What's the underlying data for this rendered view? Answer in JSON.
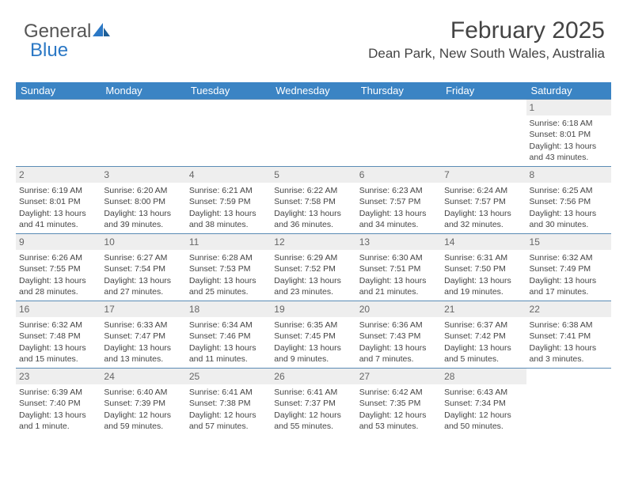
{
  "logo": {
    "text1": "General",
    "text2": "Blue"
  },
  "header": {
    "month_title": "February 2025",
    "location": "Dean Park, New South Wales, Australia"
  },
  "colors": {
    "header_bar": "#3b84c4",
    "header_text": "#ffffff",
    "daynum_bg": "#eeeeee",
    "daynum_text": "#666666",
    "divider": "#5a8bb5",
    "body_text": "#444444",
    "logo_gray": "#555555",
    "logo_blue": "#2b78c5"
  },
  "day_headers": [
    "Sunday",
    "Monday",
    "Tuesday",
    "Wednesday",
    "Thursday",
    "Friday",
    "Saturday"
  ],
  "weeks": [
    [
      null,
      null,
      null,
      null,
      null,
      null,
      {
        "n": "1",
        "sunrise": "Sunrise: 6:18 AM",
        "sunset": "Sunset: 8:01 PM",
        "daylight": "Daylight: 13 hours and 43 minutes."
      }
    ],
    [
      {
        "n": "2",
        "sunrise": "Sunrise: 6:19 AM",
        "sunset": "Sunset: 8:01 PM",
        "daylight": "Daylight: 13 hours and 41 minutes."
      },
      {
        "n": "3",
        "sunrise": "Sunrise: 6:20 AM",
        "sunset": "Sunset: 8:00 PM",
        "daylight": "Daylight: 13 hours and 39 minutes."
      },
      {
        "n": "4",
        "sunrise": "Sunrise: 6:21 AM",
        "sunset": "Sunset: 7:59 PM",
        "daylight": "Daylight: 13 hours and 38 minutes."
      },
      {
        "n": "5",
        "sunrise": "Sunrise: 6:22 AM",
        "sunset": "Sunset: 7:58 PM",
        "daylight": "Daylight: 13 hours and 36 minutes."
      },
      {
        "n": "6",
        "sunrise": "Sunrise: 6:23 AM",
        "sunset": "Sunset: 7:57 PM",
        "daylight": "Daylight: 13 hours and 34 minutes."
      },
      {
        "n": "7",
        "sunrise": "Sunrise: 6:24 AM",
        "sunset": "Sunset: 7:57 PM",
        "daylight": "Daylight: 13 hours and 32 minutes."
      },
      {
        "n": "8",
        "sunrise": "Sunrise: 6:25 AM",
        "sunset": "Sunset: 7:56 PM",
        "daylight": "Daylight: 13 hours and 30 minutes."
      }
    ],
    [
      {
        "n": "9",
        "sunrise": "Sunrise: 6:26 AM",
        "sunset": "Sunset: 7:55 PM",
        "daylight": "Daylight: 13 hours and 28 minutes."
      },
      {
        "n": "10",
        "sunrise": "Sunrise: 6:27 AM",
        "sunset": "Sunset: 7:54 PM",
        "daylight": "Daylight: 13 hours and 27 minutes."
      },
      {
        "n": "11",
        "sunrise": "Sunrise: 6:28 AM",
        "sunset": "Sunset: 7:53 PM",
        "daylight": "Daylight: 13 hours and 25 minutes."
      },
      {
        "n": "12",
        "sunrise": "Sunrise: 6:29 AM",
        "sunset": "Sunset: 7:52 PM",
        "daylight": "Daylight: 13 hours and 23 minutes."
      },
      {
        "n": "13",
        "sunrise": "Sunrise: 6:30 AM",
        "sunset": "Sunset: 7:51 PM",
        "daylight": "Daylight: 13 hours and 21 minutes."
      },
      {
        "n": "14",
        "sunrise": "Sunrise: 6:31 AM",
        "sunset": "Sunset: 7:50 PM",
        "daylight": "Daylight: 13 hours and 19 minutes."
      },
      {
        "n": "15",
        "sunrise": "Sunrise: 6:32 AM",
        "sunset": "Sunset: 7:49 PM",
        "daylight": "Daylight: 13 hours and 17 minutes."
      }
    ],
    [
      {
        "n": "16",
        "sunrise": "Sunrise: 6:32 AM",
        "sunset": "Sunset: 7:48 PM",
        "daylight": "Daylight: 13 hours and 15 minutes."
      },
      {
        "n": "17",
        "sunrise": "Sunrise: 6:33 AM",
        "sunset": "Sunset: 7:47 PM",
        "daylight": "Daylight: 13 hours and 13 minutes."
      },
      {
        "n": "18",
        "sunrise": "Sunrise: 6:34 AM",
        "sunset": "Sunset: 7:46 PM",
        "daylight": "Daylight: 13 hours and 11 minutes."
      },
      {
        "n": "19",
        "sunrise": "Sunrise: 6:35 AM",
        "sunset": "Sunset: 7:45 PM",
        "daylight": "Daylight: 13 hours and 9 minutes."
      },
      {
        "n": "20",
        "sunrise": "Sunrise: 6:36 AM",
        "sunset": "Sunset: 7:43 PM",
        "daylight": "Daylight: 13 hours and 7 minutes."
      },
      {
        "n": "21",
        "sunrise": "Sunrise: 6:37 AM",
        "sunset": "Sunset: 7:42 PM",
        "daylight": "Daylight: 13 hours and 5 minutes."
      },
      {
        "n": "22",
        "sunrise": "Sunrise: 6:38 AM",
        "sunset": "Sunset: 7:41 PM",
        "daylight": "Daylight: 13 hours and 3 minutes."
      }
    ],
    [
      {
        "n": "23",
        "sunrise": "Sunrise: 6:39 AM",
        "sunset": "Sunset: 7:40 PM",
        "daylight": "Daylight: 13 hours and 1 minute."
      },
      {
        "n": "24",
        "sunrise": "Sunrise: 6:40 AM",
        "sunset": "Sunset: 7:39 PM",
        "daylight": "Daylight: 12 hours and 59 minutes."
      },
      {
        "n": "25",
        "sunrise": "Sunrise: 6:41 AM",
        "sunset": "Sunset: 7:38 PM",
        "daylight": "Daylight: 12 hours and 57 minutes."
      },
      {
        "n": "26",
        "sunrise": "Sunrise: 6:41 AM",
        "sunset": "Sunset: 7:37 PM",
        "daylight": "Daylight: 12 hours and 55 minutes."
      },
      {
        "n": "27",
        "sunrise": "Sunrise: 6:42 AM",
        "sunset": "Sunset: 7:35 PM",
        "daylight": "Daylight: 12 hours and 53 minutes."
      },
      {
        "n": "28",
        "sunrise": "Sunrise: 6:43 AM",
        "sunset": "Sunset: 7:34 PM",
        "daylight": "Daylight: 12 hours and 50 minutes."
      },
      null
    ]
  ]
}
